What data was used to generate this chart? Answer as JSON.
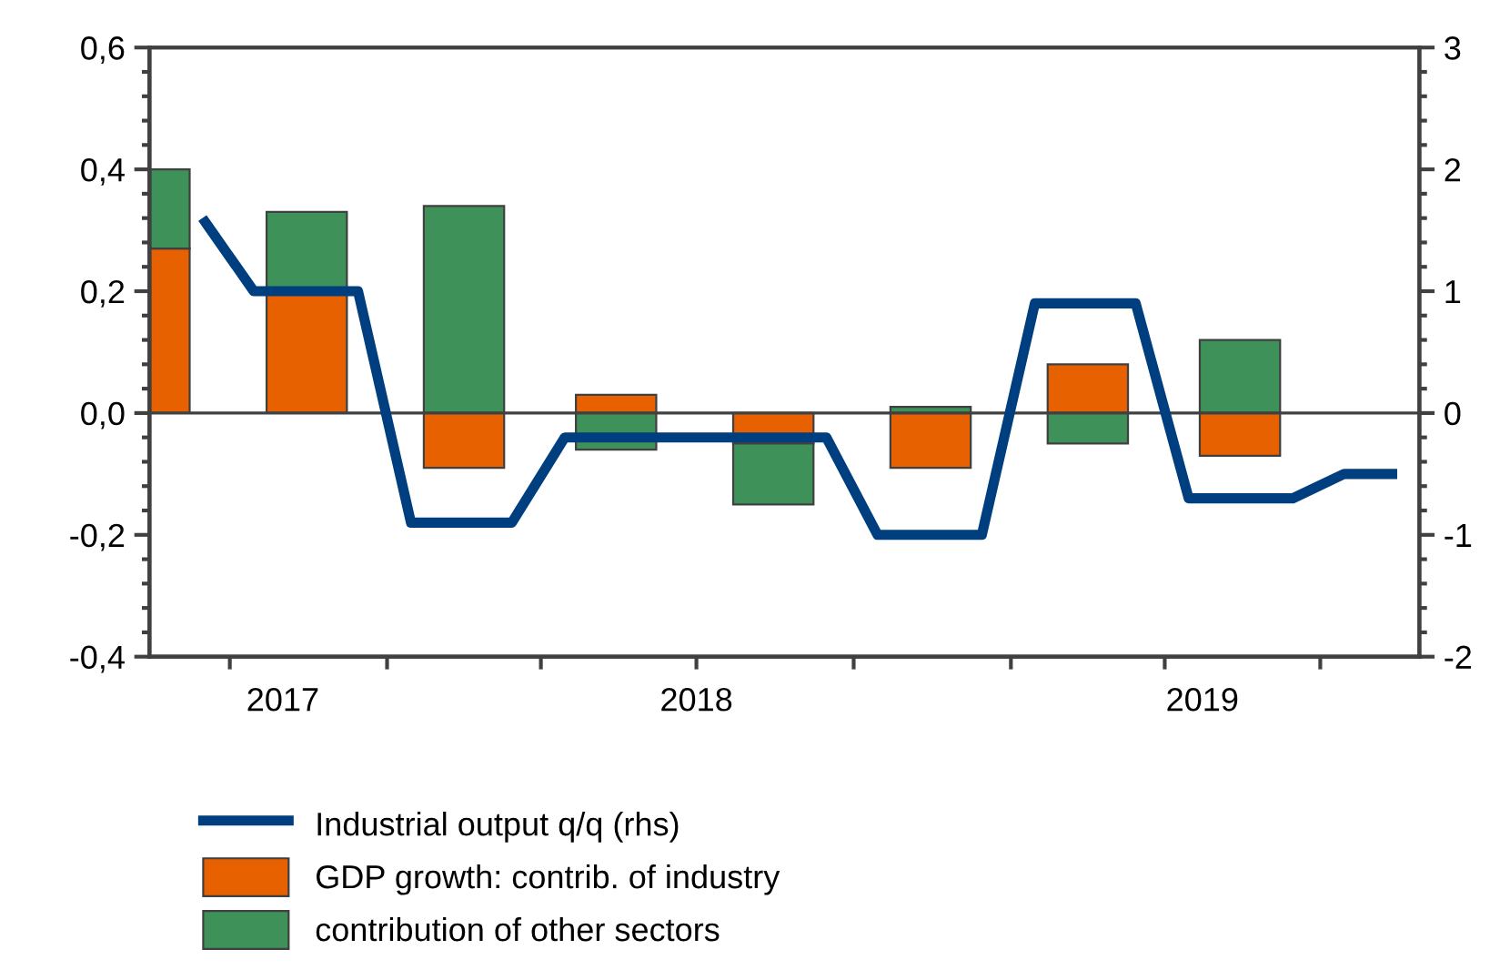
{
  "chart_data": {
    "type": "bar",
    "stacked": true,
    "series": [
      {
        "name": "GDP growth: contrib. of industry",
        "color": "#e86100",
        "x": [
          "2017-08-15",
          "2017-11-15",
          "2018-02-15",
          "2018-05-15",
          "2018-08-15",
          "2018-11-15",
          "2019-02-15",
          "2019-05-15"
        ],
        "values": [
          0.27,
          0.2,
          -0.09,
          0.03,
          -0.05,
          -0.09,
          0.08,
          -0.07
        ]
      },
      {
        "name": "contribution of other sectors",
        "color": "#3f915a",
        "x": [
          "2017-08-15",
          "2017-11-15",
          "2018-02-15",
          "2018-05-15",
          "2018-08-15",
          "2018-11-15",
          "2019-02-15",
          "2019-05-15"
        ],
        "values": [
          0.13,
          0.13,
          0.34,
          -0.06,
          -0.1,
          0.01,
          -0.05,
          0.12
        ]
      },
      {
        "name": "Industrial output q/q (rhs)",
        "type": "line",
        "axis": "y2",
        "color": "#003f7f",
        "x": [
          "2017-09-15",
          "2017-10-15",
          "2017-11-15",
          "2017-12-15",
          "2018-01-15",
          "2018-02-15",
          "2018-03-15",
          "2018-04-15",
          "2018-05-15",
          "2018-06-15",
          "2018-07-15",
          "2018-08-15",
          "2018-09-15",
          "2018-10-15",
          "2018-11-15",
          "2018-12-15",
          "2019-01-15",
          "2019-02-15",
          "2019-03-15",
          "2019-04-15",
          "2019-05-15",
          "2019-06-15",
          "2019-07-15",
          "2019-08-15"
        ],
        "values": [
          1.6,
          1.0,
          1.0,
          1.0,
          -0.9,
          -0.9,
          -0.9,
          -0.2,
          -0.2,
          -0.2,
          -0.2,
          -0.2,
          -0.2,
          -1.0,
          -1.0,
          -1.0,
          0.9,
          0.9,
          0.9,
          -0.7,
          -0.7,
          -0.7,
          -0.5,
          -0.5
        ],
        "line_style": "solid"
      }
    ],
    "xlim": [
      "2017-08-15",
      "2019-08-28"
    ],
    "xticks": [
      {
        "value": "2017-10-01",
        "label": null
      },
      {
        "value": "2018-01-01",
        "label": null
      },
      {
        "value": "2018-04-01",
        "label": null
      },
      {
        "value": "2018-07-01",
        "label": null
      },
      {
        "value": "2018-10-01",
        "label": null
      },
      {
        "value": "2019-01-01",
        "label": null
      },
      {
        "value": "2019-04-01",
        "label": null
      },
      {
        "value": "2019-07-01",
        "label": null
      },
      {
        "value": "2017-11-01",
        "label": "2017"
      },
      {
        "value": "2018-07-01",
        "label": "2018"
      },
      {
        "value": "2019-04-23",
        "label": "2019"
      }
    ],
    "ylim": [
      -0.4,
      0.6
    ],
    "yticks": [
      {
        "value": -0.4,
        "label": "-0,4"
      },
      {
        "value": -0.2,
        "label": "-0,2"
      },
      {
        "value": 0,
        "label": "0,0"
      },
      {
        "value": 0.2,
        "label": "0,2"
      },
      {
        "value": 0.4,
        "label": "0,4"
      },
      {
        "value": 0.6,
        "label": "0,6"
      }
    ],
    "y2lim": [
      -2,
      3
    ],
    "y2ticks": [
      -2,
      -1,
      0,
      1,
      2,
      3
    ],
    "ref_lines": [
      {
        "axis": "y",
        "value": 0,
        "color": "#404040"
      }
    ],
    "legend": "bottom",
    "grid": false
  }
}
